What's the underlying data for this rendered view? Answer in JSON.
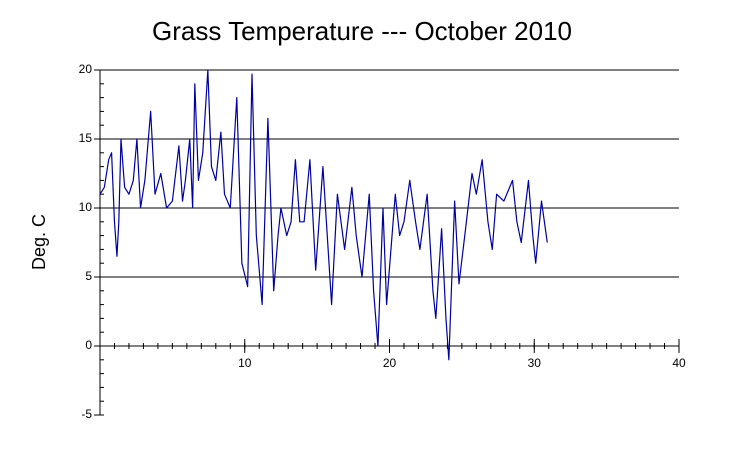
{
  "chart_data": {
    "type": "line",
    "title": "Grass Temperature --- October 2010",
    "ylabel": "Deg. C",
    "x": [
      0,
      0.3,
      0.6,
      0.8,
      1.0,
      1.17,
      1.3,
      1.45,
      1.7,
      2.0,
      2.3,
      2.55,
      2.8,
      3.1,
      3.5,
      3.8,
      4.2,
      4.6,
      5.0,
      5.45,
      5.7,
      5.9,
      6.2,
      6.4,
      6.55,
      6.8,
      7.1,
      7.45,
      7.7,
      8.0,
      8.35,
      8.6,
      9.0,
      9.45,
      9.8,
      10.2,
      10.5,
      10.8,
      11.2,
      11.6,
      12.0,
      12.3,
      12.5,
      12.9,
      13.2,
      13.5,
      13.8,
      14.1,
      14.5,
      14.9,
      15.4,
      15.7,
      16.0,
      16.4,
      16.9,
      17.4,
      17.7,
      18.1,
      18.6,
      18.9,
      19.2,
      19.55,
      19.8,
      20.1,
      20.4,
      20.7,
      21.0,
      21.4,
      21.8,
      22.1,
      22.6,
      23.0,
      23.2,
      23.6,
      23.9,
      24.1,
      24.5,
      24.8,
      25.2,
      25.7,
      26.0,
      26.4,
      26.8,
      27.1,
      27.4,
      27.9,
      28.5,
      28.8,
      29.1,
      29.6,
      29.9,
      30.1,
      30.5,
      30.9
    ],
    "series": [
      {
        "color": "#0000a0",
        "values": [
          11,
          11.5,
          13.5,
          14,
          9,
          6.5,
          9,
          15,
          11.5,
          11,
          12,
          15,
          10,
          12,
          17,
          11,
          12.5,
          10,
          10.5,
          14.5,
          10.5,
          12,
          15,
          10,
          19,
          12,
          14,
          20,
          13,
          12,
          15.5,
          11,
          10,
          18,
          6,
          4.3,
          19.7,
          8,
          3,
          16.5,
          4,
          8,
          10,
          8,
          9,
          13.5,
          9,
          9,
          13.5,
          5.5,
          13,
          8,
          3,
          11,
          7,
          11.5,
          8,
          5,
          11,
          4,
          0,
          10,
          3,
          7,
          11,
          8,
          9,
          12,
          9,
          7,
          11,
          4,
          2,
          8.5,
          2,
          -1,
          10.5,
          4.5,
          8,
          12.5,
          11,
          13.5,
          9,
          7,
          11,
          10.5,
          12,
          9,
          7.5,
          12,
          8,
          6,
          10.5,
          7.5
        ]
      }
    ],
    "xlim": [
      0,
      40
    ],
    "xticks": [
      10,
      20,
      30,
      40
    ],
    "ylim": [
      -5,
      20
    ],
    "yticks": [
      -5,
      0,
      5,
      10,
      15,
      20
    ],
    "grid": true
  }
}
